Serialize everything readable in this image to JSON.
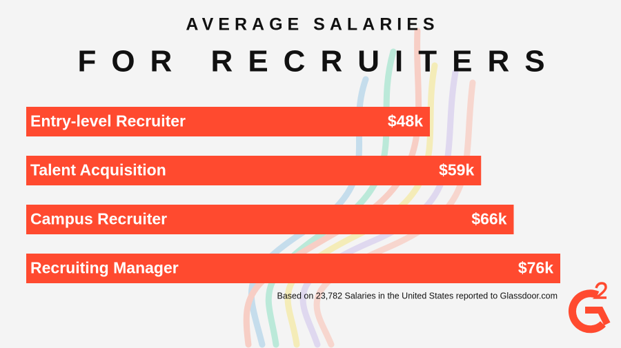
{
  "chart_data": {
    "type": "bar",
    "orientation": "horizontal",
    "title": "AVERAGE SALARIES",
    "subtitle": "FOR RECRUITERS",
    "categories": [
      "Entry-level Recruiter",
      "Talent Acquisition",
      "Campus Recruiter",
      "Recruiting Manager"
    ],
    "values": [
      48,
      59,
      66,
      76
    ],
    "value_labels": [
      "$48k",
      "$59k",
      "$66k",
      "$76k"
    ],
    "color": "#ff4a2f",
    "note": "Based on 23,782 Salaries in the United States reported to Glassdoor.com"
  }
}
